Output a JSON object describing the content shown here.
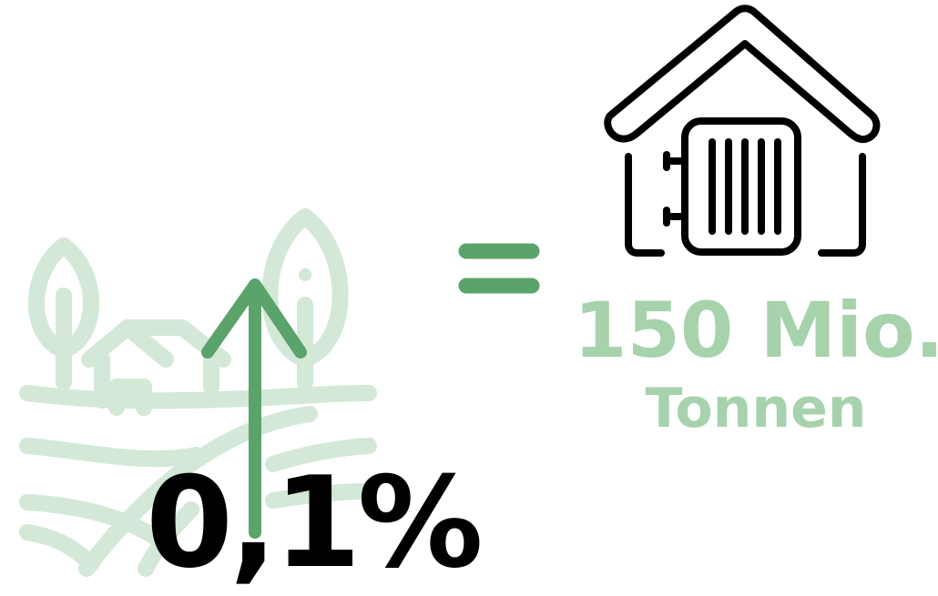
{
  "stat": {
    "percent": "0,1%",
    "amount": "150 Mio.",
    "unit": "Tonnen"
  },
  "icons": {
    "landscape": "farm-landscape-icon",
    "arrow": "up-arrow-icon",
    "equals": "equals-sign-icon",
    "house": "house-heating-radiator-icon"
  },
  "colors": {
    "landscape": "#d3e8d6",
    "accent": "#5aa36a",
    "light_green": "#a6d2ac",
    "dark": "#000000"
  }
}
